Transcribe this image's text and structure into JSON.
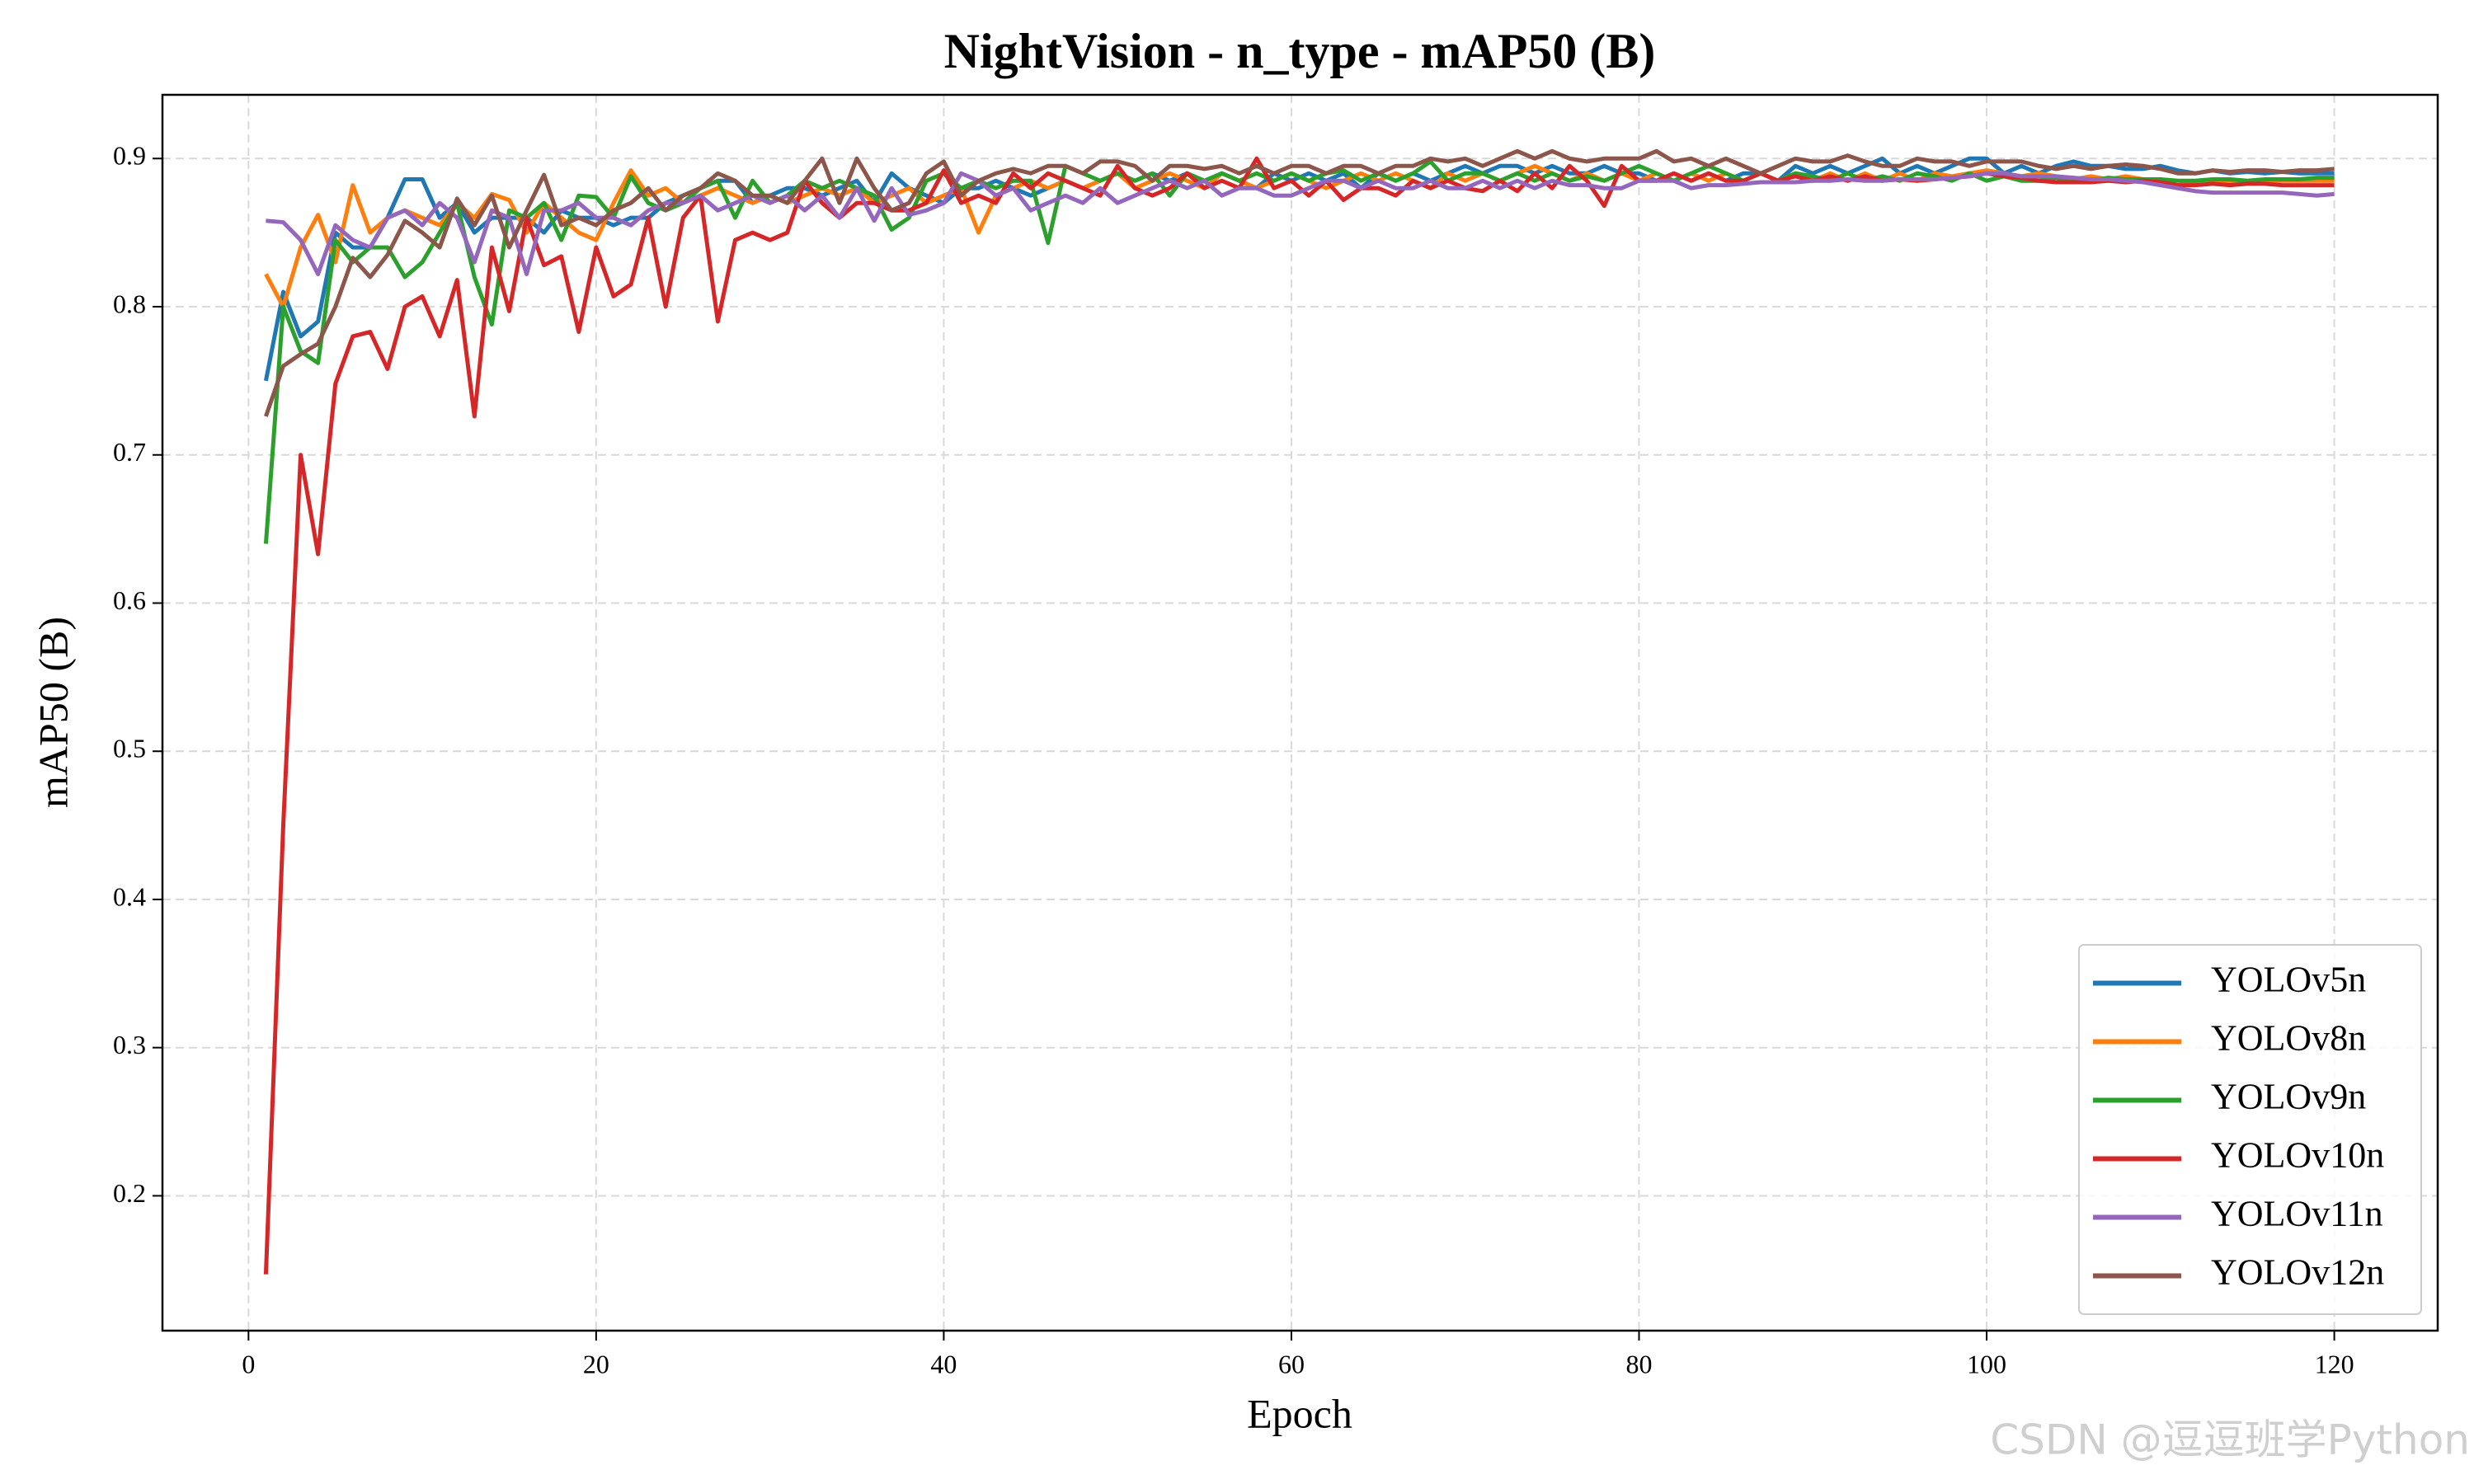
{
  "chart_data": {
    "type": "line",
    "title": "NightVision - n_type - mAP50 (B)",
    "x_label": "Epoch",
    "y_label": "mAP50 (B)",
    "watermark": "CSDN @逗逗班学Python",
    "xlim": [
      -4.95,
      125.95
    ],
    "xticks": [
      0,
      20,
      40,
      60,
      80,
      100,
      120
    ],
    "ylim": [
      0.109,
      0.943
    ],
    "yticks": [
      0.2,
      0.3,
      0.4,
      0.5,
      0.6,
      0.7,
      0.8,
      0.9
    ],
    "grid": true,
    "legend_position": "lower right",
    "x": [
      1,
      2,
      3,
      4,
      5,
      6,
      7,
      8,
      9,
      10,
      11,
      12,
      13,
      14,
      15,
      16,
      17,
      18,
      19,
      20,
      21,
      22,
      23,
      24,
      25,
      26,
      27,
      28,
      29,
      30,
      31,
      32,
      33,
      34,
      35,
      36,
      37,
      38,
      39,
      40,
      41,
      42,
      43,
      44,
      45,
      46,
      47,
      48,
      49,
      50,
      51,
      52,
      53,
      54,
      55,
      56,
      57,
      58,
      59,
      60,
      61,
      62,
      63,
      64,
      65,
      66,
      67,
      68,
      69,
      70,
      71,
      72,
      73,
      74,
      75,
      76,
      77,
      78,
      79,
      80,
      81,
      82,
      83,
      84,
      85,
      86,
      87,
      88,
      89,
      90,
      91,
      92,
      93,
      94,
      95,
      96,
      97,
      98,
      99,
      100,
      101,
      102,
      103,
      104,
      105,
      106,
      107,
      108,
      109,
      110,
      111,
      112,
      113,
      114,
      115,
      116,
      117,
      118,
      119,
      120
    ],
    "series": [
      {
        "name": "YOLOv5n",
        "color": "#1f77b4",
        "values": [
          0.75,
          0.81,
          0.78,
          0.79,
          0.85,
          0.84,
          0.84,
          0.86,
          0.886,
          0.886,
          0.86,
          0.87,
          0.85,
          0.86,
          0.86,
          0.86,
          0.85,
          0.865,
          0.86,
          0.86,
          0.855,
          0.86,
          0.86,
          0.87,
          0.875,
          0.88,
          0.885,
          0.885,
          0.87,
          0.875,
          0.88,
          0.88,
          0.875,
          0.88,
          0.885,
          0.87,
          0.89,
          0.88,
          0.875,
          0.87,
          0.88,
          0.88,
          0.885,
          0.88,
          0.875,
          0.88,
          0.885,
          0.88,
          0.885,
          0.89,
          0.885,
          0.89,
          0.885,
          0.89,
          0.885,
          0.89,
          0.885,
          0.88,
          0.89,
          0.885,
          0.89,
          0.885,
          0.89,
          0.88,
          0.89,
          0.885,
          0.89,
          0.885,
          0.89,
          0.895,
          0.89,
          0.895,
          0.895,
          0.89,
          0.895,
          0.89,
          0.89,
          0.895,
          0.89,
          0.89,
          0.885,
          0.89,
          0.885,
          0.89,
          0.885,
          0.89,
          0.89,
          0.885,
          0.895,
          0.89,
          0.895,
          0.89,
          0.895,
          0.9,
          0.89,
          0.895,
          0.89,
          0.895,
          0.9,
          0.9,
          0.89,
          0.895,
          0.89,
          0.895,
          0.898,
          0.895,
          0.895,
          0.893,
          0.893,
          0.895,
          0.892,
          0.89,
          0.892,
          0.89,
          0.891,
          0.89,
          0.891,
          0.89,
          0.89,
          0.89
        ]
      },
      {
        "name": "YOLOv8n",
        "color": "#ff7f0e",
        "values": [
          0.822,
          0.8,
          0.84,
          0.862,
          0.83,
          0.882,
          0.85,
          0.86,
          0.865,
          0.86,
          0.855,
          0.87,
          0.86,
          0.876,
          0.872,
          0.85,
          0.87,
          0.86,
          0.85,
          0.845,
          0.87,
          0.892,
          0.875,
          0.88,
          0.87,
          0.875,
          0.88,
          0.875,
          0.87,
          0.875,
          0.87,
          0.875,
          0.88,
          0.875,
          0.88,
          0.87,
          0.875,
          0.88,
          0.87,
          0.875,
          0.88,
          0.85,
          0.875,
          0.88,
          0.885,
          0.88,
          0.885,
          0.88,
          0.885,
          0.89,
          0.88,
          0.885,
          0.89,
          0.885,
          0.88,
          0.89,
          0.885,
          0.88,
          0.885,
          0.89,
          0.885,
          0.88,
          0.885,
          0.89,
          0.885,
          0.89,
          0.885,
          0.88,
          0.89,
          0.885,
          0.89,
          0.885,
          0.89,
          0.895,
          0.89,
          0.885,
          0.89,
          0.885,
          0.89,
          0.885,
          0.89,
          0.885,
          0.89,
          0.885,
          0.89,
          0.885,
          0.89,
          0.885,
          0.89,
          0.885,
          0.89,
          0.885,
          0.89,
          0.885,
          0.89,
          0.885,
          0.89,
          0.888,
          0.89,
          0.892,
          0.89,
          0.888,
          0.89,
          0.888,
          0.886,
          0.888,
          0.886,
          0.888,
          0.886,
          0.885,
          0.882,
          0.884,
          0.885,
          0.884,
          0.884,
          0.885,
          0.885,
          0.885,
          0.885,
          0.885
        ]
      },
      {
        "name": "YOLOv9n",
        "color": "#2ca02c",
        "values": [
          0.64,
          0.8,
          0.77,
          0.762,
          0.845,
          0.83,
          0.84,
          0.84,
          0.82,
          0.83,
          0.85,
          0.87,
          0.82,
          0.788,
          0.865,
          0.86,
          0.87,
          0.845,
          0.875,
          0.874,
          0.86,
          0.888,
          0.87,
          0.865,
          0.87,
          0.88,
          0.885,
          0.86,
          0.885,
          0.87,
          0.875,
          0.885,
          0.88,
          0.885,
          0.88,
          0.875,
          0.852,
          0.86,
          0.885,
          0.89,
          0.88,
          0.885,
          0.88,
          0.885,
          0.885,
          0.843,
          0.895,
          0.89,
          0.885,
          0.89,
          0.885,
          0.89,
          0.875,
          0.89,
          0.885,
          0.89,
          0.885,
          0.89,
          0.885,
          0.89,
          0.885,
          0.89,
          0.892,
          0.885,
          0.89,
          0.885,
          0.89,
          0.898,
          0.885,
          0.89,
          0.89,
          0.885,
          0.89,
          0.885,
          0.89,
          0.885,
          0.888,
          0.885,
          0.89,
          0.895,
          0.89,
          0.885,
          0.89,
          0.895,
          0.89,
          0.885,
          0.89,
          0.885,
          0.89,
          0.888,
          0.885,
          0.89,
          0.885,
          0.888,
          0.885,
          0.89,
          0.888,
          0.885,
          0.89,
          0.885,
          0.888,
          0.885,
          0.885,
          0.887,
          0.885,
          0.885,
          0.887,
          0.886,
          0.886,
          0.886,
          0.885,
          0.885,
          0.886,
          0.886,
          0.885,
          0.886,
          0.886,
          0.886,
          0.887,
          0.887
        ]
      },
      {
        "name": "YOLOv10n",
        "color": "#d62728",
        "values": [
          0.147,
          0.45,
          0.7,
          0.633,
          0.748,
          0.78,
          0.783,
          0.758,
          0.8,
          0.807,
          0.78,
          0.818,
          0.726,
          0.84,
          0.797,
          0.86,
          0.828,
          0.834,
          0.783,
          0.84,
          0.807,
          0.815,
          0.86,
          0.8,
          0.86,
          0.875,
          0.79,
          0.845,
          0.85,
          0.845,
          0.85,
          0.885,
          0.87,
          0.86,
          0.87,
          0.87,
          0.865,
          0.865,
          0.87,
          0.892,
          0.87,
          0.875,
          0.87,
          0.89,
          0.88,
          0.89,
          0.885,
          0.88,
          0.875,
          0.895,
          0.88,
          0.875,
          0.88,
          0.89,
          0.88,
          0.885,
          0.88,
          0.9,
          0.88,
          0.885,
          0.875,
          0.885,
          0.872,
          0.88,
          0.88,
          0.875,
          0.885,
          0.88,
          0.885,
          0.88,
          0.878,
          0.885,
          0.878,
          0.89,
          0.88,
          0.895,
          0.885,
          0.868,
          0.895,
          0.885,
          0.885,
          0.89,
          0.885,
          0.89,
          0.885,
          0.885,
          0.89,
          0.885,
          0.888,
          0.885,
          0.888,
          0.885,
          0.888,
          0.885,
          0.886,
          0.885,
          0.886,
          0.887,
          0.888,
          0.89,
          0.888,
          0.887,
          0.885,
          0.884,
          0.884,
          0.884,
          0.885,
          0.884,
          0.885,
          0.884,
          0.882,
          0.882,
          0.883,
          0.882,
          0.883,
          0.883,
          0.882,
          0.882,
          0.882,
          0.882
        ]
      },
      {
        "name": "YOLOv11n",
        "color": "#9467bd",
        "values": [
          0.858,
          0.857,
          0.845,
          0.822,
          0.855,
          0.845,
          0.84,
          0.86,
          0.865,
          0.855,
          0.87,
          0.86,
          0.83,
          0.865,
          0.86,
          0.822,
          0.865,
          0.865,
          0.87,
          0.86,
          0.86,
          0.855,
          0.865,
          0.87,
          0.87,
          0.875,
          0.865,
          0.87,
          0.875,
          0.87,
          0.875,
          0.865,
          0.875,
          0.86,
          0.88,
          0.858,
          0.88,
          0.862,
          0.865,
          0.87,
          0.89,
          0.885,
          0.875,
          0.88,
          0.865,
          0.87,
          0.875,
          0.87,
          0.88,
          0.87,
          0.875,
          0.88,
          0.885,
          0.88,
          0.885,
          0.875,
          0.88,
          0.88,
          0.875,
          0.875,
          0.88,
          0.885,
          0.885,
          0.88,
          0.885,
          0.88,
          0.88,
          0.885,
          0.88,
          0.88,
          0.885,
          0.88,
          0.885,
          0.88,
          0.885,
          0.882,
          0.882,
          0.88,
          0.88,
          0.885,
          0.885,
          0.885,
          0.88,
          0.882,
          0.882,
          0.883,
          0.884,
          0.884,
          0.884,
          0.885,
          0.885,
          0.886,
          0.885,
          0.885,
          0.886,
          0.886,
          0.886,
          0.887,
          0.888,
          0.89,
          0.89,
          0.888,
          0.888,
          0.888,
          0.887,
          0.886,
          0.886,
          0.885,
          0.884,
          0.882,
          0.88,
          0.878,
          0.877,
          0.877,
          0.877,
          0.877,
          0.877,
          0.876,
          0.875,
          0.876
        ]
      },
      {
        "name": "YOLOv12n",
        "color": "#8c564b",
        "values": [
          0.726,
          0.76,
          0.768,
          0.775,
          0.8,
          0.833,
          0.82,
          0.835,
          0.858,
          0.85,
          0.84,
          0.873,
          0.855,
          0.875,
          0.84,
          0.865,
          0.889,
          0.855,
          0.86,
          0.855,
          0.865,
          0.87,
          0.88,
          0.865,
          0.875,
          0.88,
          0.89,
          0.885,
          0.875,
          0.875,
          0.87,
          0.885,
          0.9,
          0.87,
          0.9,
          0.88,
          0.865,
          0.87,
          0.89,
          0.898,
          0.875,
          0.885,
          0.89,
          0.893,
          0.89,
          0.895,
          0.895,
          0.89,
          0.898,
          0.898,
          0.895,
          0.885,
          0.895,
          0.895,
          0.893,
          0.895,
          0.89,
          0.895,
          0.89,
          0.895,
          0.895,
          0.89,
          0.895,
          0.895,
          0.89,
          0.895,
          0.895,
          0.9,
          0.898,
          0.9,
          0.895,
          0.9,
          0.905,
          0.9,
          0.905,
          0.9,
          0.898,
          0.9,
          0.9,
          0.9,
          0.905,
          0.898,
          0.9,
          0.895,
          0.9,
          0.895,
          0.89,
          0.895,
          0.9,
          0.898,
          0.898,
          0.902,
          0.898,
          0.895,
          0.895,
          0.9,
          0.898,
          0.898,
          0.895,
          0.898,
          0.898,
          0.898,
          0.895,
          0.893,
          0.895,
          0.893,
          0.895,
          0.896,
          0.895,
          0.893,
          0.89,
          0.89,
          0.892,
          0.891,
          0.892,
          0.892,
          0.891,
          0.892,
          0.892,
          0.893
        ]
      }
    ]
  }
}
